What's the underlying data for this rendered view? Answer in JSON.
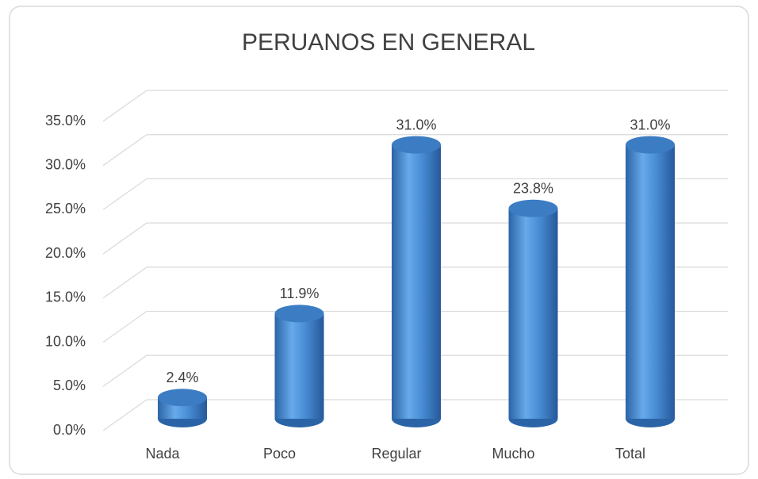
{
  "chart_data": {
    "type": "bar",
    "title": "PERUANOS EN GENERAL",
    "categories": [
      "Nada",
      "Poco",
      "Regular",
      "Mucho",
      "Total"
    ],
    "values": [
      2.4,
      11.9,
      31.0,
      23.8,
      31.0
    ],
    "value_labels": [
      "2.4%",
      "11.9%",
      "31.0%",
      "23.8%",
      "31.0%"
    ],
    "color": "#4a8fd6",
    "ylim": [
      0,
      35
    ],
    "yticks": [
      {
        "value": 0,
        "label": "0.0%"
      },
      {
        "value": 5,
        "label": "5.0%"
      },
      {
        "value": 10,
        "label": "10.0%"
      },
      {
        "value": 15,
        "label": "15.0%"
      },
      {
        "value": 20,
        "label": "20.0%"
      },
      {
        "value": 25,
        "label": "25.0%"
      },
      {
        "value": 30,
        "label": "30.0%"
      },
      {
        "value": 35,
        "label": "35.0%"
      }
    ],
    "grid": true
  }
}
